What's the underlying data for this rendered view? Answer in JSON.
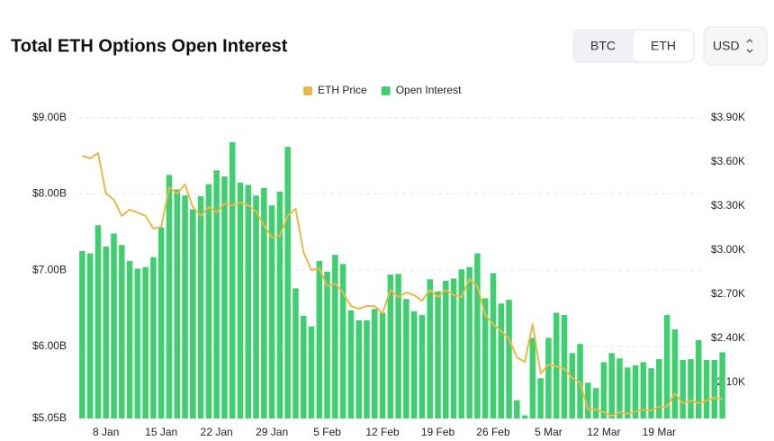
{
  "header": {
    "title": "Total ETH Options Open Interest",
    "toggle": [
      "BTC",
      "ETH"
    ],
    "selected": "ETH",
    "currency": "USD"
  },
  "chart_data": {
    "type": "bar",
    "categories": [
      null,
      null,
      null,
      "8 Jan",
      null,
      null,
      null,
      null,
      null,
      null,
      "15 Jan",
      null,
      null,
      null,
      null,
      null,
      null,
      "22 Jan",
      null,
      null,
      null,
      null,
      null,
      null,
      "29 Jan",
      null,
      null,
      null,
      null,
      null,
      null,
      "5 Feb",
      null,
      null,
      null,
      null,
      null,
      null,
      "12 Feb",
      null,
      null,
      null,
      null,
      null,
      null,
      "19 Feb",
      null,
      null,
      null,
      null,
      null,
      null,
      "26 Feb",
      null,
      null,
      null,
      null,
      null,
      null,
      "5 Mar",
      null,
      null,
      null,
      null,
      null,
      null,
      "12 Mar",
      null,
      null,
      null,
      null,
      null,
      null,
      "19 Mar",
      null,
      null,
      null,
      null,
      null,
      null,
      null,
      null
    ],
    "series": [
      {
        "name": "ETH Price",
        "color": "#e8b94a",
        "type": "line",
        "axis": "y2",
        "values": [
          3643,
          3624,
          3661,
          3386,
          3343,
          3233,
          3276,
          3257,
          3233,
          3147,
          3159,
          3428,
          3386,
          3447,
          3294,
          3233,
          3294,
          3257,
          3318,
          3306,
          3324,
          3306,
          3263,
          3171,
          3086,
          3098,
          3233,
          3282,
          2988,
          2865,
          2877,
          2755,
          2773,
          2712,
          2620,
          2602,
          2620,
          2620,
          2571,
          2730,
          2681,
          2712,
          2694,
          2657,
          2730,
          2681,
          2730,
          2694,
          2681,
          2804,
          2755,
          2559,
          2498,
          2449,
          2400,
          2271,
          2241,
          2498,
          2161,
          2222,
          2210,
          2192,
          2130,
          2100,
          1916,
          1916,
          1898,
          1873,
          1898,
          1886,
          1904,
          1916,
          1910,
          1935,
          1935,
          2026,
          1959,
          1977,
          1959,
          1977,
          1996,
          1990
        ]
      },
      {
        "name": "Open Interest",
        "color": "#3ecf6e",
        "values": [
          7.25,
          7.22,
          7.59,
          7.31,
          7.48,
          7.33,
          7.12,
          7.02,
          7.04,
          7.17,
          7.56,
          8.25,
          8.06,
          7.98,
          7.8,
          7.97,
          8.13,
          8.31,
          8.23,
          8.68,
          8.15,
          8.12,
          7.98,
          8.08,
          7.85,
          8.03,
          8.62,
          6.76,
          6.4,
          6.26,
          7.12,
          6.98,
          7.2,
          7.08,
          6.47,
          6.34,
          6.34,
          6.49,
          6.44,
          6.94,
          6.95,
          6.62,
          6.46,
          6.41,
          6.88,
          6.72,
          6.86,
          6.89,
          7.01,
          7.04,
          7.22,
          6.63,
          6.96,
          6.56,
          6.61,
          5.29,
          5.09,
          6.11,
          5.58,
          6.11,
          6.44,
          6.41,
          5.91,
          6.03,
          5.52,
          5.45,
          5.79,
          5.91,
          5.84,
          5.72,
          5.75,
          5.79,
          5.71,
          5.83,
          6.41,
          6.22,
          5.82,
          5.83,
          6.08,
          5.82,
          5.82,
          5.92
        ]
      }
    ],
    "ylim": [
      5.05,
      9.0
    ],
    "yticks": [
      {
        "value": 5.05,
        "label": "$5.05B"
      },
      {
        "value": 6.0,
        "label": "$6.00B"
      },
      {
        "value": 7.0,
        "label": "$7.00B"
      },
      {
        "value": 8.0,
        "label": "$8.00B"
      },
      {
        "value": 9.0,
        "label": "$9.00B"
      }
    ],
    "y2lim": [
      1855,
      3900
    ],
    "y2ticks": [
      {
        "value": 2100,
        "label": "$2.10K"
      },
      {
        "value": 2400,
        "label": "$2.40K"
      },
      {
        "value": 2700,
        "label": "$2.70K"
      },
      {
        "value": 3000,
        "label": "$3.00K"
      },
      {
        "value": 3300,
        "label": "$3.30K"
      },
      {
        "value": 3600,
        "label": "$3.60K"
      },
      {
        "value": 3900,
        "label": "$3.90K"
      }
    ],
    "grid": true,
    "legend": "top"
  }
}
